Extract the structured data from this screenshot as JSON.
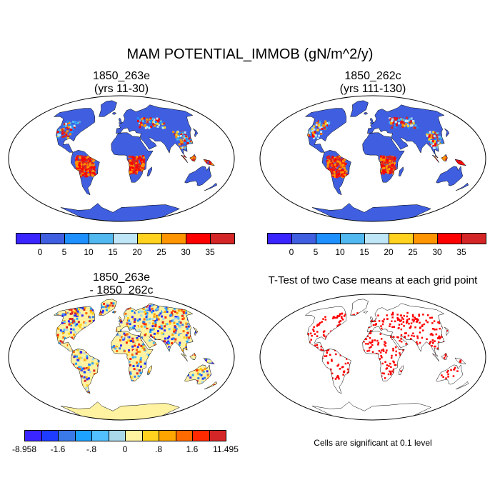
{
  "title": "MAM POTENTIAL_IMMOB (gN/m^2/y)",
  "panels": [
    {
      "title": "1850_263e\n(yrs 11-30)"
    },
    {
      "title": "1850_262c\n(yrs 111-130)"
    },
    {
      "title": "1850_263e\n- 1850_262c"
    },
    {
      "title": "T-Test of two Case means at each grid point"
    }
  ],
  "colorbar_top": {
    "colors": [
      "#3a24ff",
      "#3f5fe0",
      "#1e90ff",
      "#52b8f0",
      "#bfe6f7",
      "#ffd21f",
      "#ff9500",
      "#ff0000",
      "#d42626"
    ],
    "labels": [
      "0",
      "5",
      "10",
      "15",
      "20",
      "25",
      "30",
      "35"
    ]
  },
  "colorbar_diff": {
    "colors": [
      "#3a24ff",
      "#1e3cff",
      "#3a79e8",
      "#1ea2ff",
      "#52c0ff",
      "#a8d8ea",
      "#fff2a0",
      "#ffd21f",
      "#ffa500",
      "#ff6a00",
      "#ff2a00",
      "#d42626"
    ],
    "labels": [
      "-8.958",
      "-1.6",
      "-.8",
      "0",
      ".8",
      "1.6",
      "11.495"
    ]
  },
  "note": "Cells are significant at 0.1 level",
  "colors": {
    "ocean": "#ffffff",
    "land_low": "#3f5fe0",
    "land_high": "#d42626",
    "diff_base": "#fff2a0",
    "sig": "#ff0000"
  }
}
